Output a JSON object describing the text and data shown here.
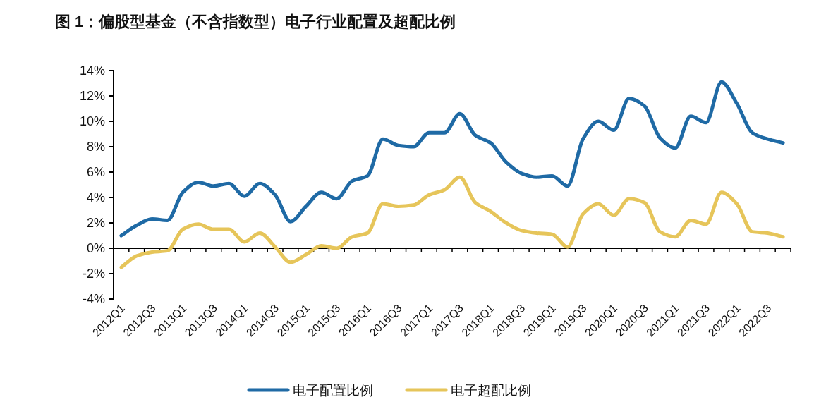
{
  "chart_data": {
    "type": "line",
    "title": "图 1：偏股型基金（不含指数型）电子行业配置及超配比例",
    "categories": [
      "2012Q1",
      null,
      "2012Q3",
      null,
      "2013Q1",
      null,
      "2013Q3",
      null,
      "2014Q1",
      null,
      "2014Q3",
      null,
      "2015Q1",
      null,
      "2015Q3",
      null,
      "2016Q1",
      null,
      "2016Q3",
      null,
      "2017Q1",
      null,
      "2017Q3",
      null,
      "2018Q1",
      null,
      "2018Q3",
      null,
      "2019Q1",
      null,
      "2019Q3",
      null,
      "2020Q1",
      null,
      "2020Q3",
      null,
      "2021Q1",
      null,
      "2021Q3",
      null,
      "2022Q1",
      null,
      "2022Q3",
      null
    ],
    "series": [
      {
        "name": "电子配置比例",
        "color": "#1f6aa5",
        "values": [
          1.0,
          1.8,
          2.3,
          2.2,
          4.4,
          5.2,
          4.9,
          5.1,
          4.1,
          5.1,
          4.2,
          2.1,
          3.3,
          4.4,
          3.9,
          5.3,
          5.7,
          8.6,
          8.1,
          8.0,
          9.1,
          9.1,
          10.6,
          8.9,
          8.3,
          6.8,
          5.9,
          5.6,
          5.7,
          4.9,
          8.6,
          10.0,
          9.3,
          11.8,
          11.2,
          8.7,
          7.9,
          10.4,
          9.9,
          13.1,
          11.4,
          9.1,
          8.6,
          8.3
        ]
      },
      {
        "name": "电子超配比例",
        "color": "#e6c55a",
        "values": [
          -1.5,
          -0.6,
          -0.3,
          -0.2,
          1.5,
          1.9,
          1.5,
          1.5,
          0.5,
          1.2,
          0.1,
          -1.1,
          -0.5,
          0.2,
          0.0,
          0.9,
          1.2,
          3.5,
          3.3,
          3.4,
          4.2,
          4.6,
          5.6,
          3.6,
          2.9,
          2.0,
          1.4,
          1.2,
          1.1,
          0.1,
          2.7,
          3.5,
          2.6,
          3.9,
          3.6,
          1.3,
          0.9,
          2.2,
          1.9,
          4.4,
          3.5,
          1.3,
          1.2,
          0.9
        ]
      }
    ],
    "ylim": [
      -4,
      14
    ],
    "yticks": [
      {
        "value": -4,
        "label": "-4%"
      },
      {
        "value": -2,
        "label": "-2%"
      },
      {
        "value": 0,
        "label": "0%"
      },
      {
        "value": 2,
        "label": "2%"
      },
      {
        "value": 4,
        "label": "4%"
      },
      {
        "value": 6,
        "label": "6%"
      },
      {
        "value": 8,
        "label": "8%"
      },
      {
        "value": 10,
        "label": "10%"
      },
      {
        "value": 12,
        "label": "12%"
      },
      {
        "value": 14,
        "label": "14%"
      }
    ],
    "legend": "bottom"
  }
}
